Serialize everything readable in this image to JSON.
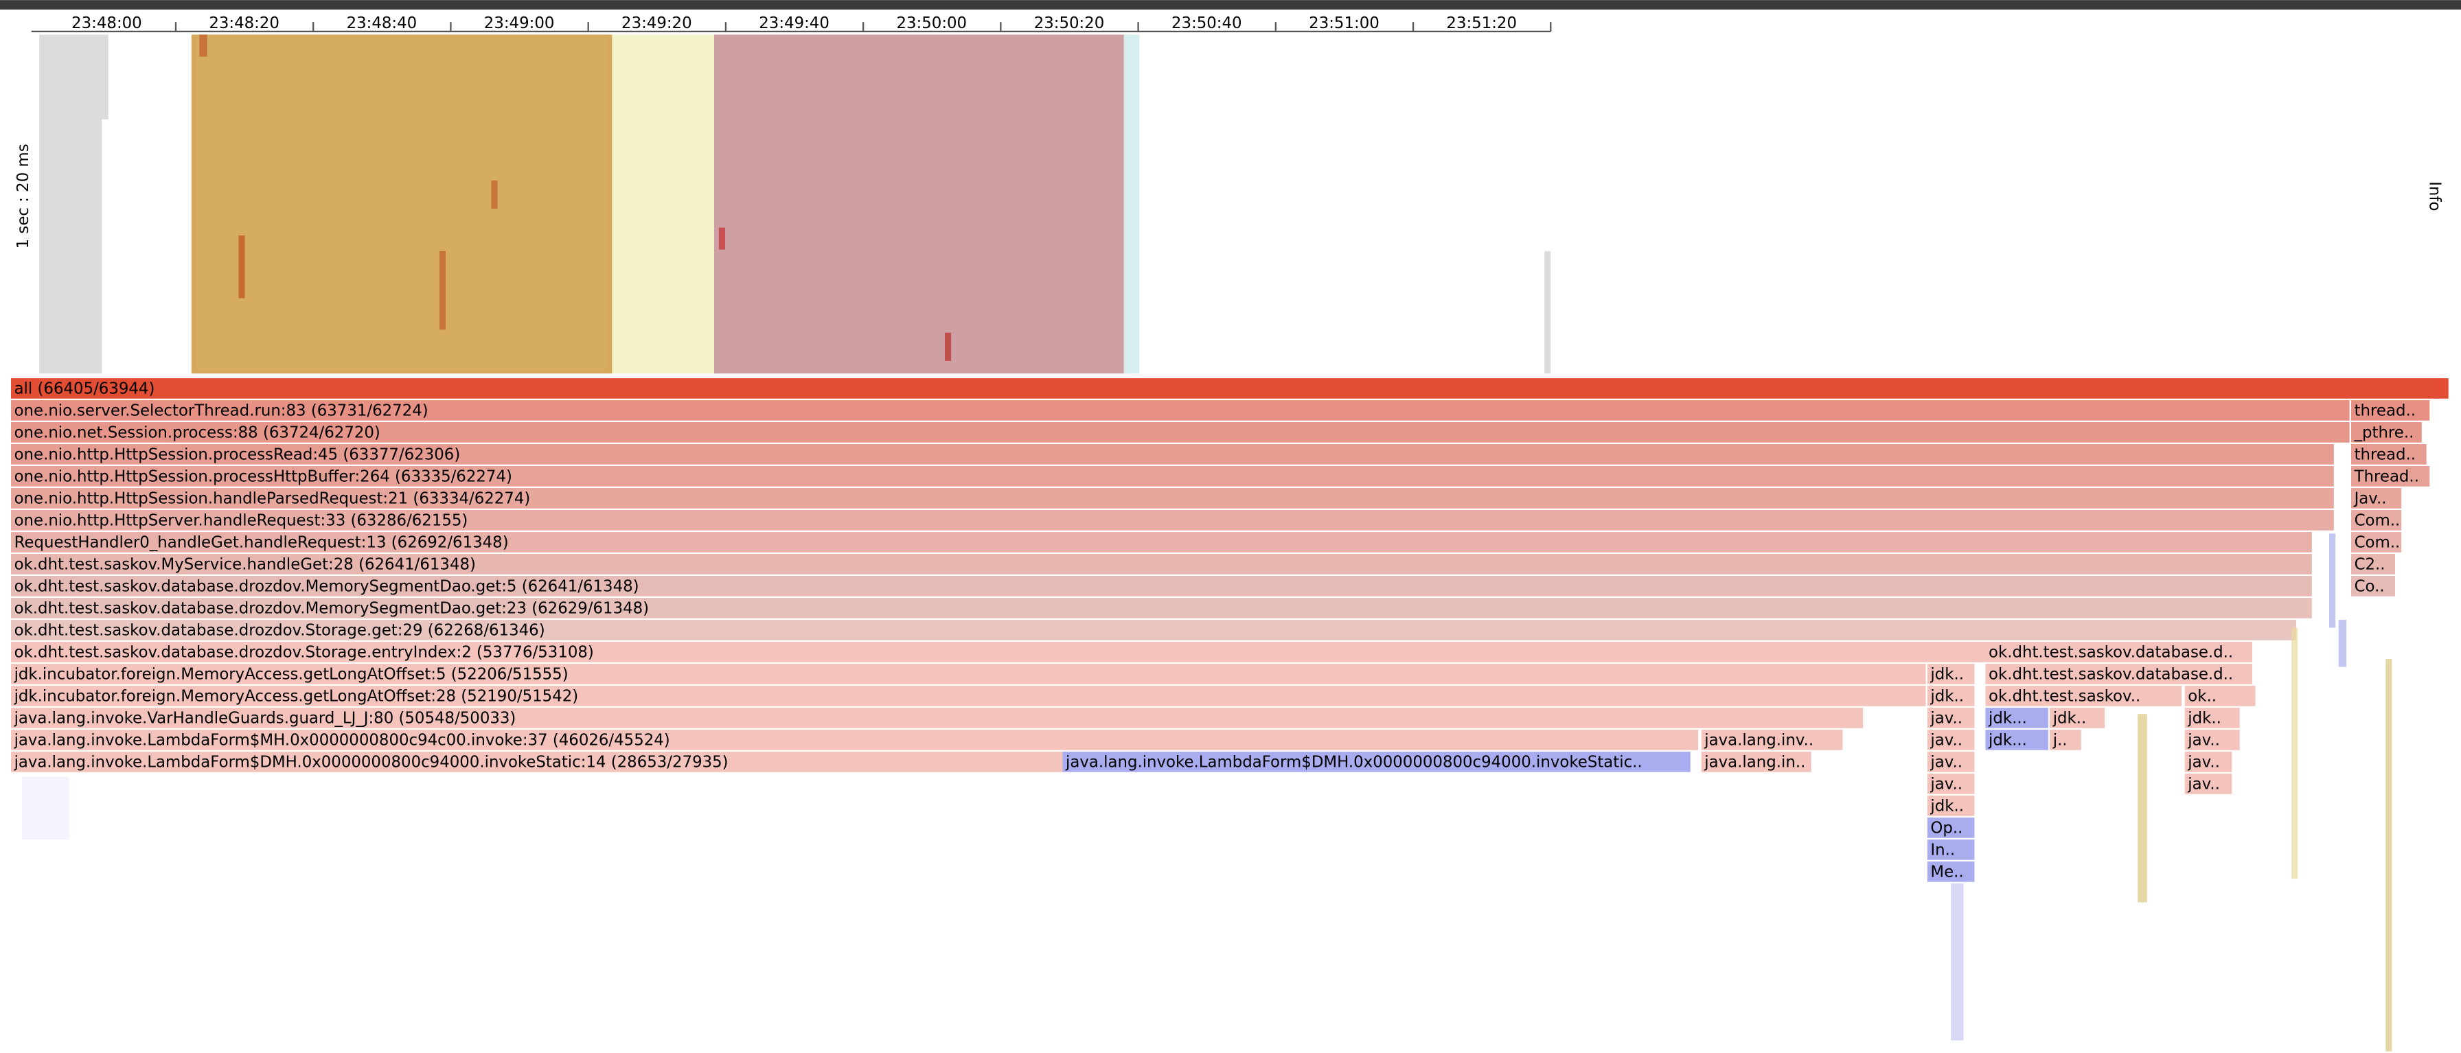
{
  "timeline": {
    "ticks": [
      "23:48:00",
      "23:48:20",
      "23:48:40",
      "23:49:00",
      "23:49:20",
      "23:49:40",
      "23:50:00",
      "23:50:20",
      "23:50:40",
      "23:51:00",
      "23:51:20"
    ],
    "scale_label": "1 sec : 20 ms"
  },
  "info": "Info",
  "flame": {
    "rows": [
      [
        "all (66405/63944)"
      ],
      [
        "one.nio.server.SelectorThread.run:83 (63731/62724)",
        "thread.."
      ],
      [
        "one.nio.net.Session.process:88 (63724/62720)",
        "_pthre.."
      ],
      [
        "one.nio.http.HttpSession.processRead:45 (63377/62306)",
        "thread.."
      ],
      [
        "one.nio.http.HttpSession.processHttpBuffer:264 (63335/62274)",
        "Thread.."
      ],
      [
        "one.nio.http.HttpSession.handleParsedRequest:21 (63334/62274)",
        "Jav.."
      ],
      [
        "one.nio.http.HttpServer.handleRequest:33 (63286/62155)",
        "Com.."
      ],
      [
        "RequestHandler0_handleGet.handleRequest:13 (62692/61348)",
        "Com.."
      ],
      [
        "ok.dht.test.saskov.MyService.handleGet:28 (62641/61348)",
        "C2.."
      ],
      [
        "ok.dht.test.saskov.database.drozdov.MemorySegmentDao.get:5 (62641/61348)",
        "Co.."
      ],
      [
        "ok.dht.test.saskov.database.drozdov.MemorySegmentDao.get:23 (62629/61348)"
      ],
      [
        "ok.dht.test.saskov.database.drozdov.Storage.get:29 (62268/61346)"
      ],
      [
        "ok.dht.test.saskov.database.drozdov.Storage.entryIndex:2 (53776/53108)",
        "ok.dht.test.saskov.database.d.."
      ],
      [
        "jdk.incubator.foreign.MemoryAccess.getLongAtOffset:5 (52206/51555)",
        "jdk..",
        "ok.dht.test.saskov.database.d.."
      ],
      [
        "jdk.incubator.foreign.MemoryAccess.getLongAtOffset:28 (52190/51542)",
        "jdk..",
        "ok.dht.test.saskov..",
        "ok.."
      ],
      [
        "java.lang.invoke.VarHandleGuards.guard_LJ_J:80 (50548/50033)",
        "jav..",
        "jdk...",
        "jdk..",
        "jdk.."
      ],
      [
        "java.lang.invoke.LambdaForm$MH.0x0000000800c94c00.invoke:37 (46026/45524)",
        "java.lang.inv..",
        "jav..",
        "jdk...",
        "j..",
        "jav.."
      ],
      [
        "java.lang.invoke.LambdaForm$DMH.0x0000000800c94000.invokeStatic:14 (28653/27935)",
        "java.lang.invoke.LambdaForm$DMH.0x0000000800c94000.invokeStatic..",
        "java.lang.in..",
        "jav..",
        "jav.."
      ],
      [
        "jav..",
        "jav.."
      ],
      [
        "jdk.."
      ],
      [
        "Op.."
      ],
      [
        "In.."
      ],
      [
        "Me.."
      ]
    ]
  }
}
